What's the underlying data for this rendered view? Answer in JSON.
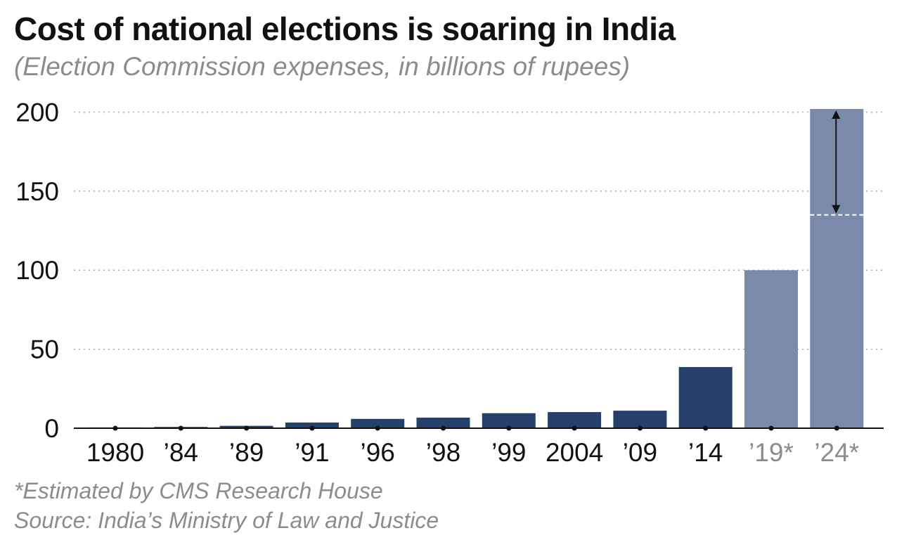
{
  "title": "Cost of national elections is soaring in India",
  "subtitle": "(Election Commission expenses, in billions of rupees)",
  "footnote": "*Estimated by CMS Research House",
  "source": "Source: India’s Ministry of Law and Justice",
  "colors": {
    "actual": "#24406b",
    "estimated": "#7b89aa",
    "grid": "#aaaaaa",
    "axis": "#111111",
    "label": "#111111",
    "label_estimated": "#8c8c8c"
  },
  "chart_data": {
    "type": "bar",
    "title": "Cost of national elections is soaring in India",
    "subtitle": "(Election Commission expenses, in billions of rupees)",
    "categories": [
      "1980",
      "’84",
      "’89",
      "’91",
      "’96",
      "’98",
      "’99",
      "2004",
      "’09",
      "’14",
      "’19*",
      "’24*"
    ],
    "values": [
      0.5,
      0.8,
      1.5,
      3.6,
      5.9,
      6.7,
      9.5,
      10.2,
      11.1,
      38.7,
      100,
      202
    ],
    "estimated": [
      false,
      false,
      false,
      false,
      false,
      false,
      false,
      false,
      false,
      false,
      true,
      true
    ],
    "yticks": [
      0,
      50,
      100,
      150,
      200
    ],
    "ylim": [
      0,
      202
    ],
    "xlabel": "",
    "ylabel": "",
    "grid": true,
    "annotations": [
      {
        "type": "range-arrow",
        "category": "’24*",
        "from": 135,
        "to": 202,
        "dashed_line_at": 135
      }
    ]
  }
}
